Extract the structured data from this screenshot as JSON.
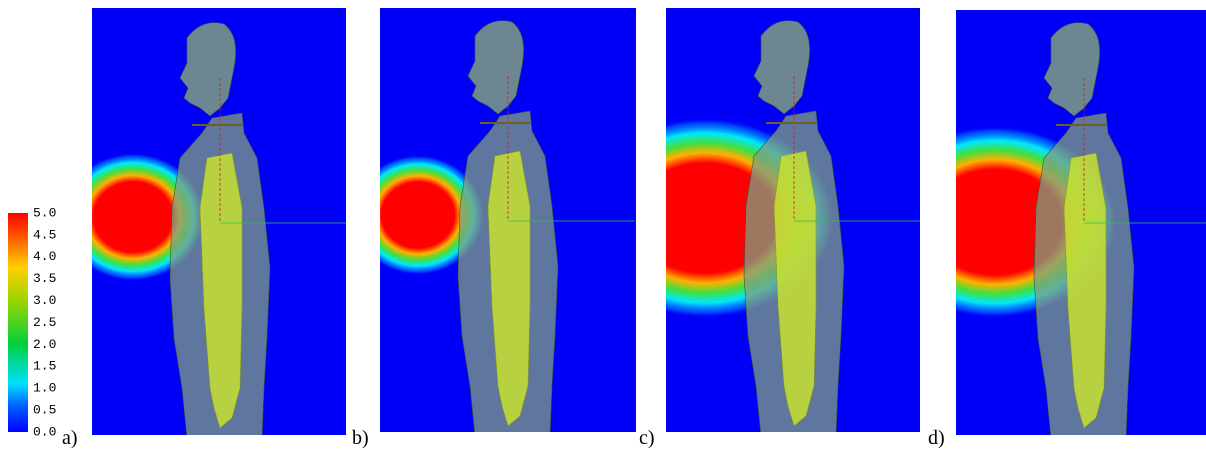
{
  "colorbar": {
    "ticks": [
      "0.0",
      "0.5",
      "1.0",
      "1.5",
      "2.0",
      "2.5",
      "3.0",
      "3.5",
      "4.0",
      "4.5",
      "5.0"
    ]
  },
  "panels": [
    {
      "label": "a)"
    },
    {
      "label": "b)"
    },
    {
      "label": "c)"
    },
    {
      "label": "d)"
    }
  ]
}
